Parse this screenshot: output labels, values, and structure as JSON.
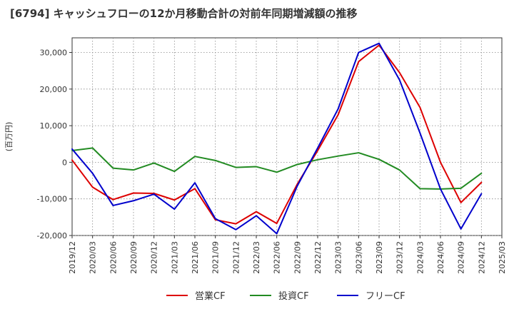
{
  "title": "[6794]  キャッシュフローの12か月移動合計の対前年同期増減額の推移",
  "chart_data": {
    "type": "line",
    "title": "[6794]  キャッシュフローの12か月移動合計の対前年同期増減額の推移",
    "xlabel": "",
    "ylabel": "(百万円)",
    "x": [
      "2019/12",
      "2020/03",
      "2020/06",
      "2020/09",
      "2020/12",
      "2021/03",
      "2021/06",
      "2021/09",
      "2021/12",
      "2022/03",
      "2022/06",
      "2022/09",
      "2022/12",
      "2023/03",
      "2023/06",
      "2023/09",
      "2023/12",
      "2024/03",
      "2024/06",
      "2024/09",
      "2024/12",
      "2025/03"
    ],
    "ylim": [
      -20000,
      34000
    ],
    "yticks": [
      -20000,
      -10000,
      0,
      10000,
      20000,
      30000
    ],
    "ytick_labels": [
      "-20,000",
      "-10,000",
      "0",
      "10,000",
      "20,000",
      "30,000"
    ],
    "grid": true,
    "legend_position": "bottom",
    "series": [
      {
        "name": "営業CF",
        "color": "#dd0000",
        "values": [
          600,
          -6800,
          -10200,
          -8400,
          -8500,
          -10300,
          -7200,
          -15700,
          -16800,
          -13500,
          -16700,
          -6000,
          3200,
          13000,
          27500,
          32000,
          24500,
          15000,
          0,
          -11000,
          -5500,
          null
        ]
      },
      {
        "name": "投資CF",
        "color": "#228b22",
        "values": [
          3200,
          3900,
          -1600,
          -2100,
          -200,
          -2500,
          1600,
          500,
          -1400,
          -1200,
          -2700,
          -600,
          700,
          1700,
          2600,
          800,
          -2100,
          -7200,
          -7300,
          -7100,
          -3000,
          null
        ]
      },
      {
        "name": "フリーCF",
        "color": "#0000cc",
        "values": [
          3600,
          -3000,
          -11800,
          -10500,
          -8700,
          -12800,
          -5600,
          -15400,
          -18400,
          -14600,
          -19500,
          -6500,
          3900,
          14600,
          30000,
          32500,
          22500,
          8000,
          -7300,
          -18200,
          -8600,
          null
        ]
      }
    ]
  }
}
